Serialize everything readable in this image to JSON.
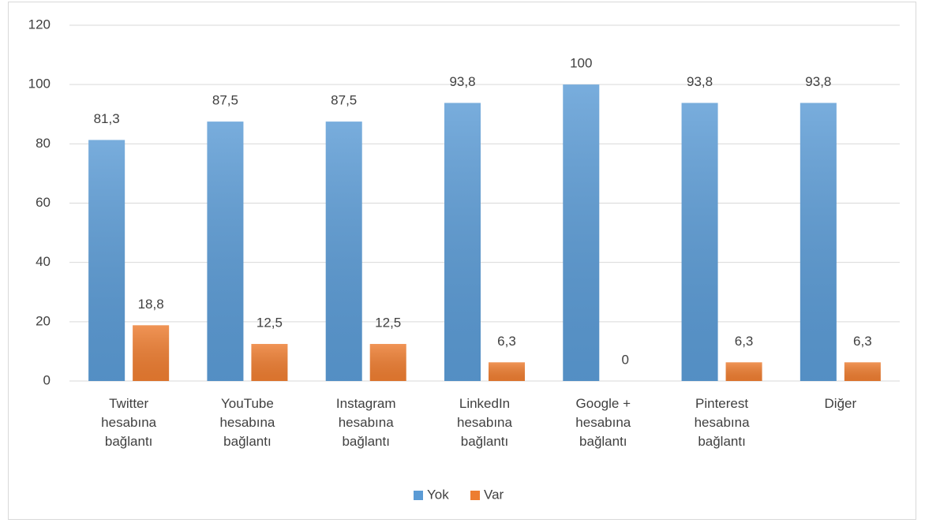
{
  "chart_data": {
    "type": "bar",
    "categories": [
      "Twitter hesabına bağlantı",
      "YouTube hesabına bağlantı",
      "Instagram hesabına bağlantı",
      "LinkedIn hesabına bağlantı",
      "Google + hesabına bağlantı",
      "Pinterest hesabına bağlantı",
      "Diğer"
    ],
    "series": [
      {
        "name": "Yok",
        "color": "#5b9bd5",
        "values": [
          81.3,
          87.5,
          87.5,
          93.8,
          100,
          93.8,
          93.8
        ],
        "value_labels": [
          "81,3",
          "87,5",
          "87,5",
          "93,8",
          "100",
          "93,8",
          "93,8"
        ]
      },
      {
        "name": "Var",
        "color": "#ed7d31",
        "values": [
          18.8,
          12.5,
          12.5,
          6.3,
          0,
          6.3,
          6.3
        ],
        "value_labels": [
          "18,8",
          "12,5",
          "12,5",
          "6,3",
          "0",
          "6,3",
          "6,3"
        ]
      }
    ],
    "ylim": [
      0,
      120
    ],
    "yticks": [
      0,
      20,
      40,
      60,
      80,
      100,
      120
    ],
    "grid": true,
    "legend": "bottom"
  }
}
